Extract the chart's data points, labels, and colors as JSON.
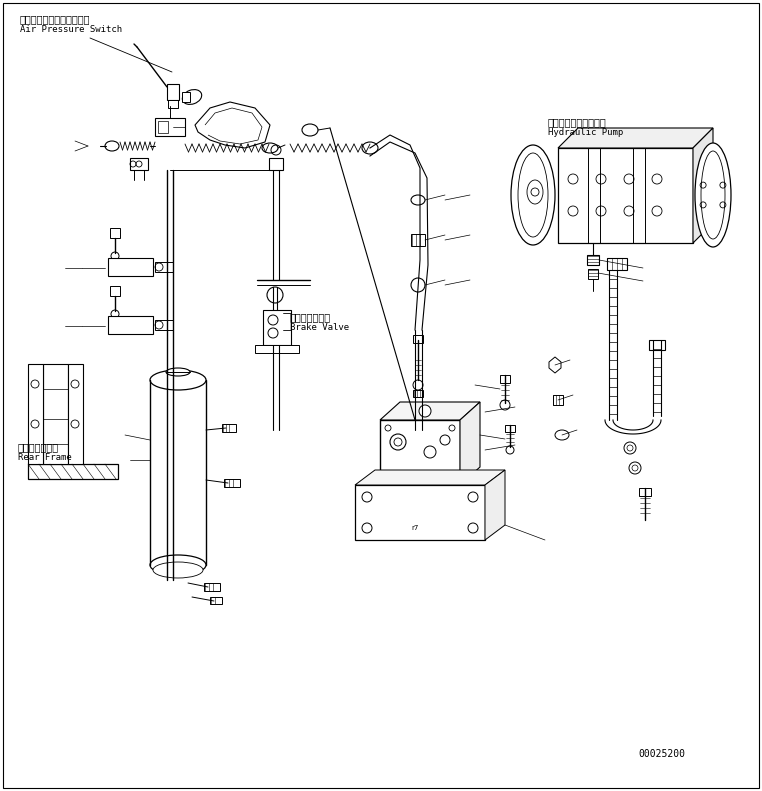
{
  "bg_color": "#ffffff",
  "line_color": "#000000",
  "fig_width": 7.62,
  "fig_height": 7.91,
  "dpi": 100,
  "labels": {
    "air_pressure_jp": "エアープレッシャスイッチ",
    "air_pressure_en": "Air Pressure Switch",
    "hydraulic_pump_jp": "ハイドロリックポンプ",
    "hydraulic_pump_en": "Hydraulic Pump",
    "brake_valve_jp": "ブレーキバルブ",
    "brake_valve_en": "Brake Valve",
    "rear_frame_jp": "リヤーフレーム",
    "rear_frame_en": "Rear Frame",
    "part_number": "00025200"
  }
}
